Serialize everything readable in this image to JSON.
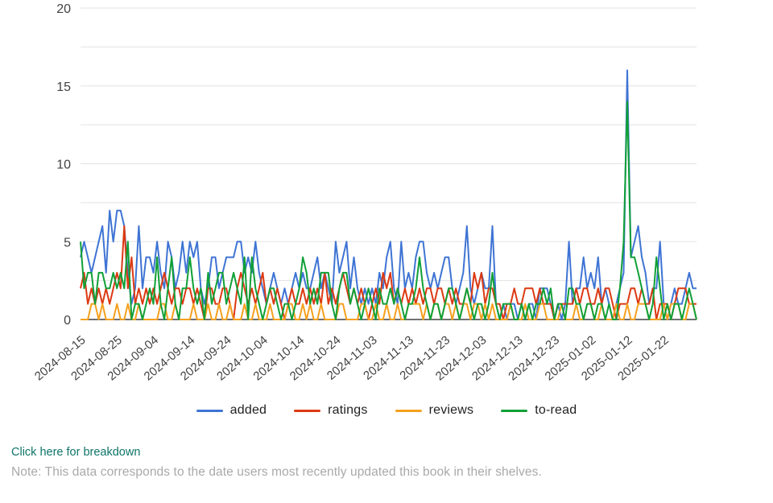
{
  "page": {
    "link_text": "Click here for breakdown",
    "link_color": "#0e7569",
    "note_text": "Note: This data corresponds to the date users most recently updated this book in their shelves.",
    "note_color": "#a9a9a9",
    "background": "#ffffff"
  },
  "chart_data": {
    "type": "line",
    "title": "",
    "xlabel": "",
    "ylabel": "",
    "grid": true,
    "legend_position": "bottom",
    "ylim": [
      0,
      20
    ],
    "y_tick_labels": [
      "0",
      "5",
      "10",
      "15",
      "20"
    ],
    "y_minor_step": 2.5,
    "start_date": "2024-08-15",
    "end_date": "2025-01-31",
    "frequency": "daily",
    "x_tick_interval_days": 10,
    "x_tick_labels": [
      "2024-08-15",
      "2024-08-25",
      "2024-09-04",
      "2024-09-14",
      "2024-09-24",
      "2024-10-04",
      "2024-10-14",
      "2024-10-24",
      "2024-11-03",
      "2024-11-13",
      "2024-11-23",
      "2024-12-03",
      "2024-12-13",
      "2024-12-23",
      "2025-01-02",
      "2025-01-12",
      "2025-01-22"
    ],
    "axis_text_color": "#424242",
    "gridline_color": "#e3e3e3",
    "baseline_color": "#424242",
    "series": [
      {
        "name": "added",
        "color": "#3e74d4",
        "values": [
          4,
          5,
          4,
          3,
          4,
          5,
          6,
          3,
          7,
          5,
          7,
          7,
          6,
          3,
          1,
          2,
          6,
          2,
          4,
          4,
          3,
          5,
          3,
          2,
          5,
          4,
          2,
          3,
          5,
          3,
          5,
          4,
          5,
          2,
          1,
          2,
          4,
          4,
          2,
          3,
          4,
          4,
          4,
          5,
          5,
          3,
          4,
          3,
          5,
          3,
          2,
          1,
          2,
          3,
          2,
          1,
          2,
          1,
          2,
          3,
          2,
          3,
          2,
          2,
          3,
          4,
          2,
          3,
          2,
          1,
          5,
          3,
          4,
          5,
          2,
          4,
          2,
          1,
          2,
          1,
          2,
          1,
          3,
          2,
          4,
          5,
          2,
          1,
          5,
          2,
          3,
          2,
          4,
          5,
          5,
          3,
          2,
          3,
          2,
          3,
          4,
          4,
          2,
          1,
          2,
          3,
          6,
          2,
          1,
          2,
          3,
          2,
          2,
          6,
          1,
          0,
          1,
          0,
          1,
          1,
          0,
          1,
          0,
          1,
          1,
          0,
          2,
          2,
          2,
          1,
          0,
          1,
          0,
          1,
          5,
          1,
          2,
          2,
          4,
          2,
          3,
          2,
          4,
          1,
          2,
          1,
          0,
          1,
          2,
          3,
          16,
          4,
          5,
          6,
          4,
          3,
          1,
          2,
          2,
          5,
          1,
          0,
          1,
          2,
          1,
          1,
          2,
          3,
          2,
          2
        ]
      },
      {
        "name": "ratings",
        "color": "#dc3912",
        "values": [
          2,
          3,
          1,
          2,
          1,
          2,
          1,
          2,
          1,
          2,
          3,
          2,
          6,
          2,
          4,
          1,
          2,
          1,
          2,
          1,
          2,
          1,
          2,
          3,
          2,
          1,
          2,
          2,
          1,
          2,
          2,
          1,
          2,
          1,
          0,
          2,
          2,
          1,
          1,
          2,
          2,
          1,
          0,
          2,
          3,
          2,
          1,
          2,
          1,
          2,
          3,
          1,
          2,
          1,
          2,
          1,
          0,
          1,
          2,
          1,
          1,
          2,
          1,
          2,
          1,
          2,
          1,
          3,
          1,
          2,
          1,
          2,
          3,
          2,
          1,
          2,
          1,
          2,
          1,
          0,
          1,
          2,
          1,
          3,
          2,
          3,
          1,
          2,
          1,
          2,
          1,
          2,
          1,
          2,
          1,
          2,
          2,
          1,
          2,
          2,
          1,
          2,
          1,
          2,
          1,
          1,
          2,
          1,
          3,
          2,
          3,
          1,
          2,
          2,
          1,
          1,
          0,
          1,
          1,
          2,
          1,
          1,
          2,
          2,
          2,
          1,
          2,
          1,
          1,
          1,
          0,
          1,
          1,
          1,
          1,
          1,
          2,
          1,
          2,
          2,
          1,
          1,
          2,
          1,
          2,
          2,
          1,
          0,
          1,
          1,
          1,
          2,
          2,
          1,
          2,
          1,
          1,
          2,
          0,
          1,
          1,
          1,
          0,
          1,
          2,
          2,
          2,
          1,
          1,
          1
        ]
      },
      {
        "name": "reviews",
        "color": "#f5a01e",
        "values": [
          0,
          0,
          0,
          1,
          1,
          0,
          1,
          0,
          0,
          0,
          1,
          0,
          0,
          1,
          0,
          0,
          1,
          0,
          0,
          0,
          0,
          0,
          1,
          1,
          0,
          0,
          1,
          0,
          0,
          0,
          0,
          1,
          0,
          0,
          0,
          1,
          0,
          0,
          1,
          0,
          0,
          1,
          0,
          0,
          0,
          1,
          0,
          0,
          1,
          0,
          0,
          0,
          1,
          0,
          0,
          0,
          0,
          1,
          1,
          0,
          0,
          1,
          0,
          1,
          0,
          0,
          1,
          0,
          0,
          0,
          0,
          1,
          1,
          0,
          0,
          0,
          0,
          1,
          1,
          0,
          0,
          1,
          0,
          0,
          1,
          0,
          0,
          1,
          0,
          0,
          1,
          1,
          1,
          1,
          0,
          1,
          0,
          1,
          1,
          0,
          1,
          1,
          0,
          1,
          0,
          1,
          1,
          0,
          1,
          1,
          0,
          1,
          0,
          1,
          0,
          0,
          0,
          0,
          1,
          0,
          0,
          0,
          1,
          0,
          0,
          0,
          1,
          1,
          0,
          0,
          0,
          0,
          1,
          0,
          0,
          0,
          1,
          0,
          0,
          1,
          1,
          0,
          0,
          1,
          0,
          0,
          0,
          1,
          0,
          0,
          1,
          0,
          0,
          1,
          1,
          1,
          0,
          0,
          0,
          0,
          1,
          0,
          1,
          1,
          1,
          0,
          0,
          1,
          1,
          0
        ]
      },
      {
        "name": "to-read",
        "color": "#10a037",
        "values": [
          5,
          2,
          3,
          3,
          1,
          3,
          3,
          2,
          2,
          3,
          2,
          3,
          2,
          5,
          0,
          1,
          1,
          0,
          1,
          2,
          1,
          4,
          1,
          0,
          2,
          4,
          1,
          0,
          2,
          2,
          4,
          2,
          1,
          2,
          0,
          3,
          1,
          2,
          3,
          3,
          1,
          2,
          3,
          2,
          1,
          4,
          0,
          4,
          2,
          1,
          0,
          1,
          2,
          2,
          1,
          0,
          1,
          1,
          0,
          1,
          2,
          4,
          3,
          1,
          2,
          1,
          3,
          3,
          3,
          1,
          0,
          2,
          3,
          3,
          1,
          2,
          1,
          0,
          1,
          2,
          1,
          0,
          2,
          1,
          1,
          2,
          1,
          2,
          1,
          0,
          1,
          1,
          2,
          4,
          2,
          1,
          0,
          1,
          1,
          0,
          1,
          2,
          2,
          1,
          0,
          1,
          2,
          1,
          0,
          1,
          1,
          0,
          1,
          3,
          1,
          0,
          1,
          1,
          1,
          0,
          0,
          1,
          0,
          1,
          0,
          1,
          1,
          2,
          1,
          2,
          0,
          1,
          1,
          0,
          2,
          2,
          1,
          1,
          0,
          1,
          1,
          0,
          1,
          1,
          0,
          1,
          0,
          0,
          2,
          5,
          14,
          4,
          4,
          3,
          2,
          1,
          0,
          1,
          4,
          2,
          0,
          1,
          0,
          1,
          1,
          0,
          1,
          2,
          1,
          0
        ]
      }
    ]
  }
}
